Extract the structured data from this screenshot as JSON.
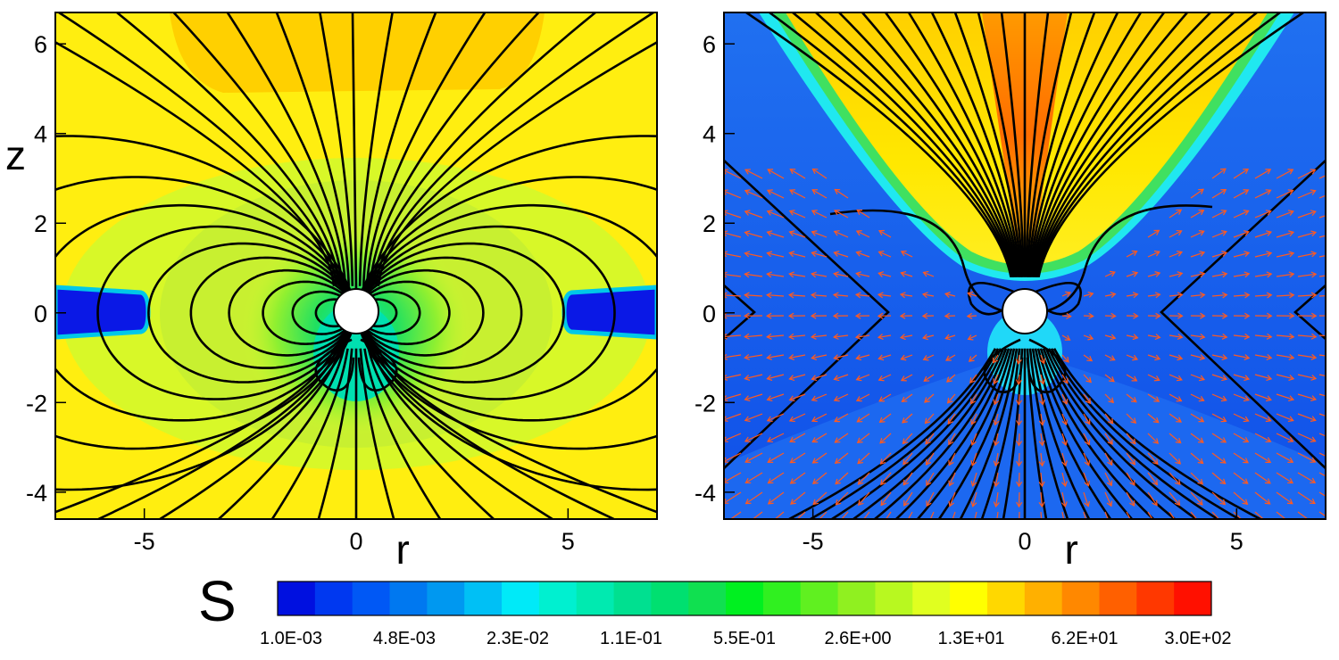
{
  "chart_data": [
    {
      "type": "heatmap",
      "panel": "left",
      "xlabel": "r",
      "ylabel": "z",
      "xlim": [
        -7.1,
        7.1
      ],
      "ylim": [
        -4.6,
        6.7
      ],
      "xticks": [
        -5,
        0,
        5
      ],
      "yticks": [
        -4,
        -2,
        0,
        2,
        4,
        6
      ],
      "overlays": [
        "magnetic field lines (black)"
      ],
      "obstacle": "white disk at origin, radius 0.5"
    },
    {
      "type": "heatmap",
      "panel": "right",
      "xlabel": "r",
      "ylabel": "",
      "xlim": [
        -7.1,
        7.1
      ],
      "ylim": [
        -4.6,
        6.7
      ],
      "xticks": [
        -5,
        0,
        5
      ],
      "yticks": [
        -4,
        -2,
        0,
        2,
        4,
        6
      ],
      "overlays": [
        "magnetic field lines (black)",
        "velocity vectors (orange-red arrows)"
      ],
      "obstacle": "white disk at origin, radius 0.5"
    }
  ],
  "colorbar": {
    "title": "S",
    "scale": "log",
    "range": [
      0.001,
      300
    ],
    "tick_labels": [
      "1.0E-03",
      "4.8E-03",
      "2.3E-02",
      "1.1E-01",
      "5.5E-01",
      "2.6E+00",
      "1.3E+01",
      "6.2E+01",
      "3.0E+02"
    ],
    "colors": [
      "#0010e0",
      "#0038f0",
      "#0058f5",
      "#0078f0",
      "#0098f0",
      "#00c0f5",
      "#00eaf8",
      "#00f0d0",
      "#00eab0",
      "#00e090",
      "#00e070",
      "#10e050",
      "#00f020",
      "#30f020",
      "#60f020",
      "#90f020",
      "#b8f820",
      "#e0ff20",
      "#ffff00",
      "#ffd800",
      "#ffb000",
      "#ff8800",
      "#ff6000",
      "#ff3800",
      "#ff1000"
    ]
  }
}
